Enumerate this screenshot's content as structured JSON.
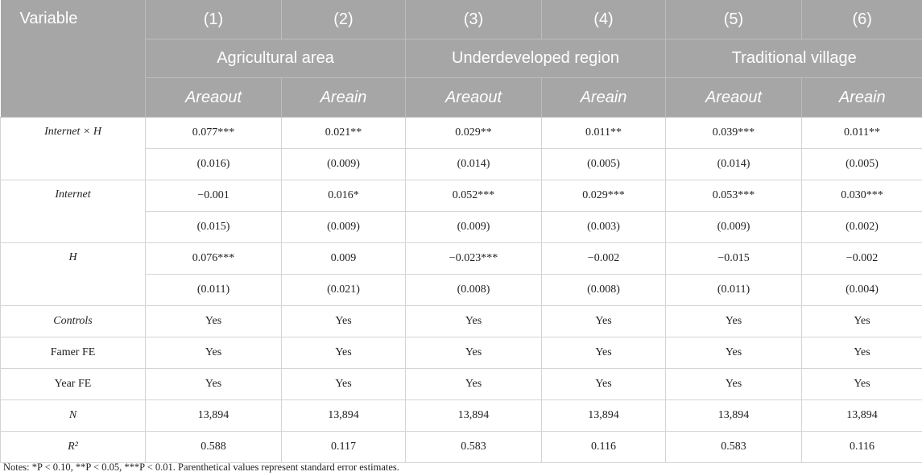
{
  "header": {
    "variable": "Variable",
    "col_numbers": [
      "(1)",
      "(2)",
      "(3)",
      "(4)",
      "(5)",
      "(6)"
    ],
    "groups": [
      "Agricultural area",
      "Underdeveloped region",
      "Traditional village"
    ],
    "outcomes": [
      "Areaout",
      "Areain",
      "Areaout",
      "Areain",
      "Areaout",
      "Areain"
    ]
  },
  "rows": {
    "internet_h": {
      "label": "Internet × H",
      "coef": [
        "0.077***",
        "0.021**",
        "0.029**",
        "0.011**",
        "0.039***",
        "0.011**"
      ],
      "se": [
        "(0.016)",
        "(0.009)",
        "(0.014)",
        "(0.005)",
        "(0.014)",
        "(0.005)"
      ]
    },
    "internet": {
      "label": "Internet",
      "coef": [
        "−0.001",
        "0.016*",
        "0.052***",
        "0.029***",
        "0.053***",
        "0.030***"
      ],
      "se": [
        "(0.015)",
        "(0.009)",
        "(0.009)",
        "(0.003)",
        "(0.009)",
        "(0.002)"
      ]
    },
    "h": {
      "label": "H",
      "coef": [
        "0.076***",
        "0.009",
        "−0.023***",
        "−0.002",
        "−0.015",
        "−0.002"
      ],
      "se": [
        "(0.011)",
        "(0.021)",
        "(0.008)",
        "(0.008)",
        "(0.011)",
        "(0.004)"
      ]
    },
    "controls": {
      "label": "Controls",
      "values": [
        "Yes",
        "Yes",
        "Yes",
        "Yes",
        "Yes",
        "Yes"
      ]
    },
    "farmer_fe": {
      "label": "Famer FE",
      "values": [
        "Yes",
        "Yes",
        "Yes",
        "Yes",
        "Yes",
        "Yes"
      ]
    },
    "year_fe": {
      "label": "Year FE",
      "values": [
        "Yes",
        "Yes",
        "Yes",
        "Yes",
        "Yes",
        "Yes"
      ]
    },
    "n": {
      "label": "N",
      "values": [
        "13,894",
        "13,894",
        "13,894",
        "13,894",
        "13,894",
        "13,894"
      ]
    },
    "r2": {
      "label": "R²",
      "values": [
        "0.588",
        "0.117",
        "0.583",
        "0.116",
        "0.583",
        "0.116"
      ]
    }
  },
  "notes": "Notes: *P < 0.10, **P < 0.05, ***P < 0.01. Parenthetical values represent standard error estimates."
}
